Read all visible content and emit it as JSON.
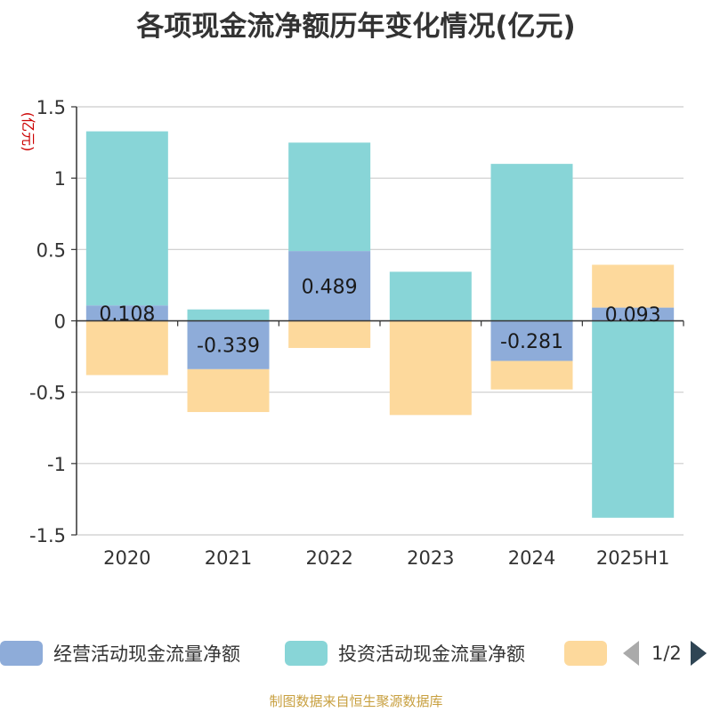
{
  "title": "各项现金流净额历年变化情况(亿元)",
  "unit_label": "(亿元)",
  "source": "制图数据来自恒生聚源数据库",
  "pager": {
    "text": "1/2"
  },
  "colors": {
    "operating": "#8eacd9",
    "investing": "#88d5d7",
    "financing": "#fdd99c",
    "unit": "#cc0000",
    "axis": "#333333",
    "grid": "#cccccc"
  },
  "legend": [
    {
      "label": "经营活动现金流量净额",
      "color": "#8eacd9"
    },
    {
      "label": "投资活动现金流量净额",
      "color": "#88d5d7"
    },
    {
      "label": "",
      "color": "#fdd99c"
    }
  ],
  "chart_data": {
    "type": "bar",
    "stacked": true,
    "categories": [
      "2020",
      "2021",
      "2022",
      "2023",
      "2024",
      "2025H1"
    ],
    "ylim": [
      -1.5,
      1.5
    ],
    "yticks": [
      "1.5",
      "1",
      "0.5",
      "0",
      "-0.5",
      "-1",
      "-1.5"
    ],
    "grid": true,
    "legend_position": "bottom",
    "series": [
      {
        "name": "经营活动现金流量净额",
        "values": [
          0.108,
          -0.339,
          0.489,
          0.004,
          -0.281,
          0.093
        ]
      },
      {
        "name": "投资活动现金流量净额",
        "values": [
          1.22,
          0.08,
          0.76,
          0.34,
          1.1,
          -1.38
        ]
      },
      {
        "values": [
          -0.38,
          -0.3,
          -0.19,
          -0.66,
          -0.2,
          0.3
        ]
      }
    ],
    "data_labels": [
      "0.108",
      "-0.339",
      "0.489",
      "",
      "-0.281",
      "0.093"
    ]
  }
}
